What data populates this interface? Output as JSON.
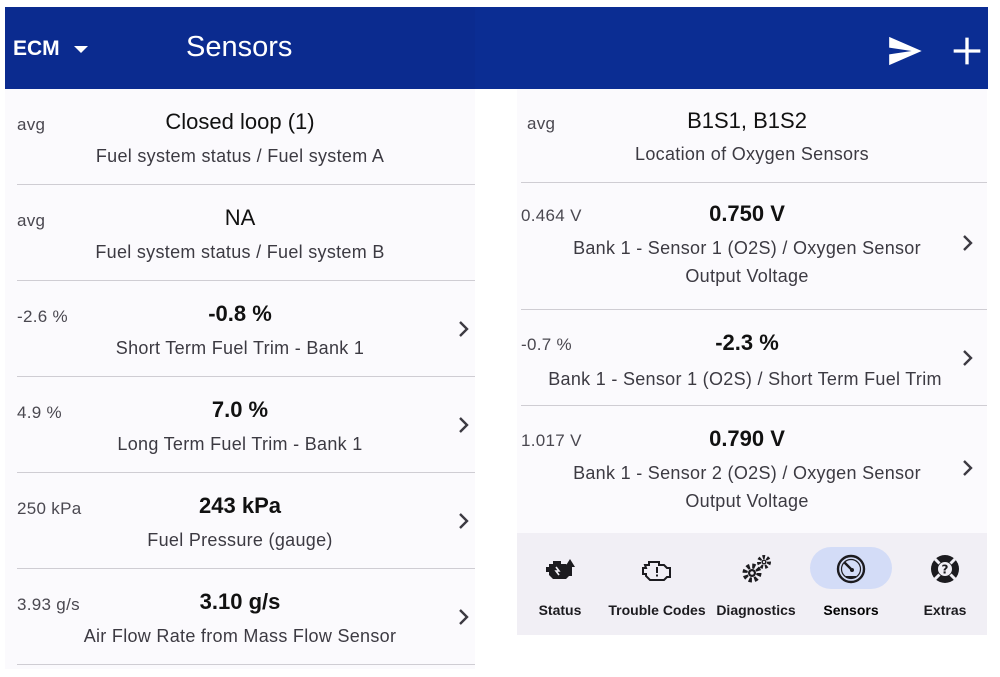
{
  "header": {
    "ecu_selector": "ECM",
    "title": "Sensors",
    "color": "#0b2b8f"
  },
  "left_rows": [
    {
      "min": "avg",
      "value": "Closed loop (1)",
      "desc": [
        "Fuel system status / Fuel system A"
      ],
      "chevron": false
    },
    {
      "min": "avg",
      "value": "NA",
      "desc": [
        "Fuel system status / Fuel system B"
      ],
      "chevron": false
    },
    {
      "min": "-2.6 %",
      "value": "-0.8 %",
      "desc": [
        "Short Term Fuel Trim - Bank 1"
      ],
      "chevron": true
    },
    {
      "min": "4.9 %",
      "value": "7.0 %",
      "desc": [
        "Long Term Fuel Trim - Bank 1"
      ],
      "chevron": true
    },
    {
      "min": "250 kPa",
      "value": "243 kPa",
      "desc": [
        "Fuel Pressure (gauge)"
      ],
      "chevron": true
    },
    {
      "min": "3.93 g/s",
      "value": "3.10 g/s",
      "desc": [
        "Air Flow Rate from Mass Flow Sensor"
      ],
      "chevron": true
    }
  ],
  "right_rows": [
    {
      "min": "avg",
      "value": "B1S1, B1S2",
      "desc": [
        "Location of Oxygen Sensors"
      ],
      "chevron": false
    },
    {
      "min": "0.464 V",
      "value": "0.750 V",
      "desc": [
        "Bank 1 - Sensor 1 (O2S) / Oxygen Sensor",
        "Output Voltage"
      ],
      "chevron": true
    },
    {
      "min": "-0.7 %",
      "value": "-2.3 %",
      "desc": [
        "Bank 1 - Sensor 1 (O2S) / Short Term Fuel Trim"
      ],
      "chevron": true
    },
    {
      "min": "1.017 V",
      "value": "0.790 V",
      "desc": [
        "Bank 1 - Sensor 2 (O2S) / Oxygen Sensor",
        "Output Voltage"
      ],
      "chevron": true
    }
  ],
  "bottom_nav": [
    {
      "label": "Status",
      "icon": "engine-warning-icon",
      "active": false
    },
    {
      "label": "Trouble Codes",
      "icon": "check-engine-icon",
      "active": false
    },
    {
      "label": "Diagnostics",
      "icon": "gears-icon",
      "active": false
    },
    {
      "label": "Sensors",
      "icon": "gauge-icon",
      "active": true
    },
    {
      "label": "Extras",
      "icon": "lifebuoy-icon",
      "active": false
    }
  ]
}
